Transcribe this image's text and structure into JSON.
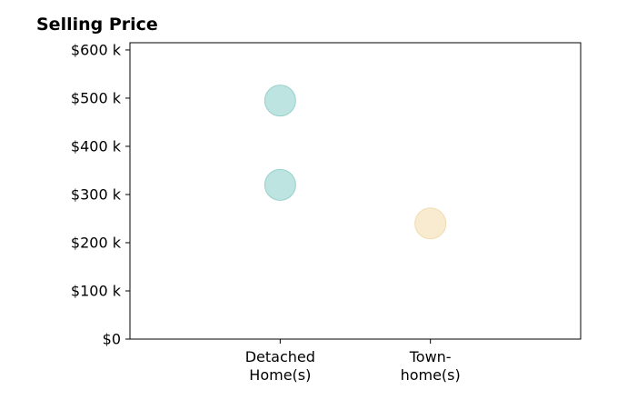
{
  "chart_data": {
    "type": "scatter",
    "title": "Selling Price",
    "xlabel": "",
    "ylabel": "",
    "categories": [
      [
        "Detached",
        "Home(s)"
      ],
      [
        "Town-",
        "home(s)"
      ]
    ],
    "x_positions": [
      1,
      2
    ],
    "xlim": [
      0,
      3
    ],
    "ylim": [
      0,
      615000
    ],
    "y_ticks": [
      0,
      100000,
      200000,
      300000,
      400000,
      500000,
      600000
    ],
    "y_tick_labels": [
      "$0",
      "$100 k",
      "$200 k",
      "$300 k",
      "$400 k",
      "$500 k",
      "$600 k"
    ],
    "points": [
      {
        "category": "Detached Home(s)",
        "x": 1,
        "y": 495000,
        "color": "#b2dfdb",
        "edge": "#98d1cb"
      },
      {
        "category": "Detached Home(s)",
        "x": 1,
        "y": 320000,
        "color": "#b2dfdb",
        "edge": "#98d1cb"
      },
      {
        "category": "Town-home(s)",
        "x": 2,
        "y": 240000,
        "color": "#f8e8c8",
        "edge": "#f0dcb0"
      }
    ],
    "grid": false,
    "legend": "none"
  }
}
